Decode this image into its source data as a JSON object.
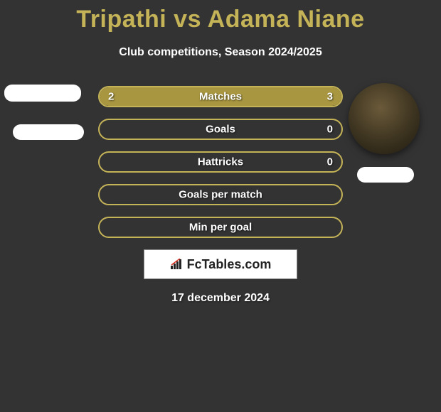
{
  "title": "Tripathi vs Adama Niane",
  "subtitle": "Club competitions, Season 2024/2025",
  "date": "17 december 2024",
  "logo_text": "FcTables.com",
  "colors": {
    "background": "#333333",
    "accent": "#c5b358",
    "accent_dark": "#a89640",
    "border_olive": "#9e8e3e",
    "text": "#ffffff"
  },
  "player_left": {
    "name": "Tripathi"
  },
  "player_right": {
    "name": "Adama Niane"
  },
  "stats": [
    {
      "label": "Matches",
      "left_val": "2",
      "right_val": "3",
      "left_pct": 40,
      "right_pct": 60,
      "left_color": "#a89640",
      "right_color": "#a89640",
      "border": "#c5b358",
      "show_vals": true
    },
    {
      "label": "Goals",
      "left_val": "0",
      "right_val": "0",
      "left_pct": 0,
      "right_pct": 0,
      "left_color": "#a89640",
      "right_color": "#a89640",
      "border": "#c5b358",
      "show_vals": true,
      "show_left_val": false
    },
    {
      "label": "Hattricks",
      "left_val": "0",
      "right_val": "0",
      "left_pct": 0,
      "right_pct": 0,
      "left_color": "#a89640",
      "right_color": "#a89640",
      "border": "#c5b358",
      "show_vals": true,
      "show_left_val": false
    },
    {
      "label": "Goals per match",
      "left_val": "",
      "right_val": "",
      "left_pct": 0,
      "right_pct": 0,
      "left_color": "#a89640",
      "right_color": "#a89640",
      "border": "#c5b358",
      "show_vals": false
    },
    {
      "label": "Min per goal",
      "left_val": "",
      "right_val": "",
      "left_pct": 0,
      "right_pct": 0,
      "left_color": "#a89640",
      "right_color": "#a89640",
      "border": "#c5b358",
      "show_vals": false
    }
  ]
}
